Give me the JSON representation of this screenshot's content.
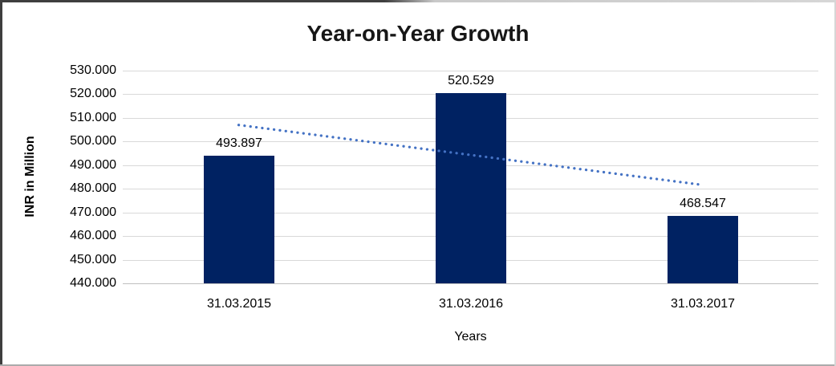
{
  "chart_data": {
    "type": "bar",
    "title": "Year-on-Year Growth",
    "categories": [
      "31.03.2015",
      "31.03.2016",
      "31.03.2017"
    ],
    "values": [
      493.897,
      520.529,
      468.547
    ],
    "data_labels": [
      "493.897",
      "520.529",
      "468.547"
    ],
    "xlabel": "Years",
    "ylabel": "INR in Million",
    "ylim": [
      440,
      530
    ],
    "ytick_step": 10,
    "ytick_labels": [
      "530.000",
      "520.000",
      "510.000",
      "500.000",
      "490.000",
      "480.000",
      "470.000",
      "460.000",
      "450.000",
      "440.000"
    ],
    "grid": true,
    "legend": "none",
    "bar_color": "#002262",
    "gridline_color": "#d9d9d9",
    "trendline": {
      "kind": "linear",
      "style": "dotted",
      "color": "#4472c4",
      "start_value": 507.0,
      "end_value": 481.65
    }
  }
}
